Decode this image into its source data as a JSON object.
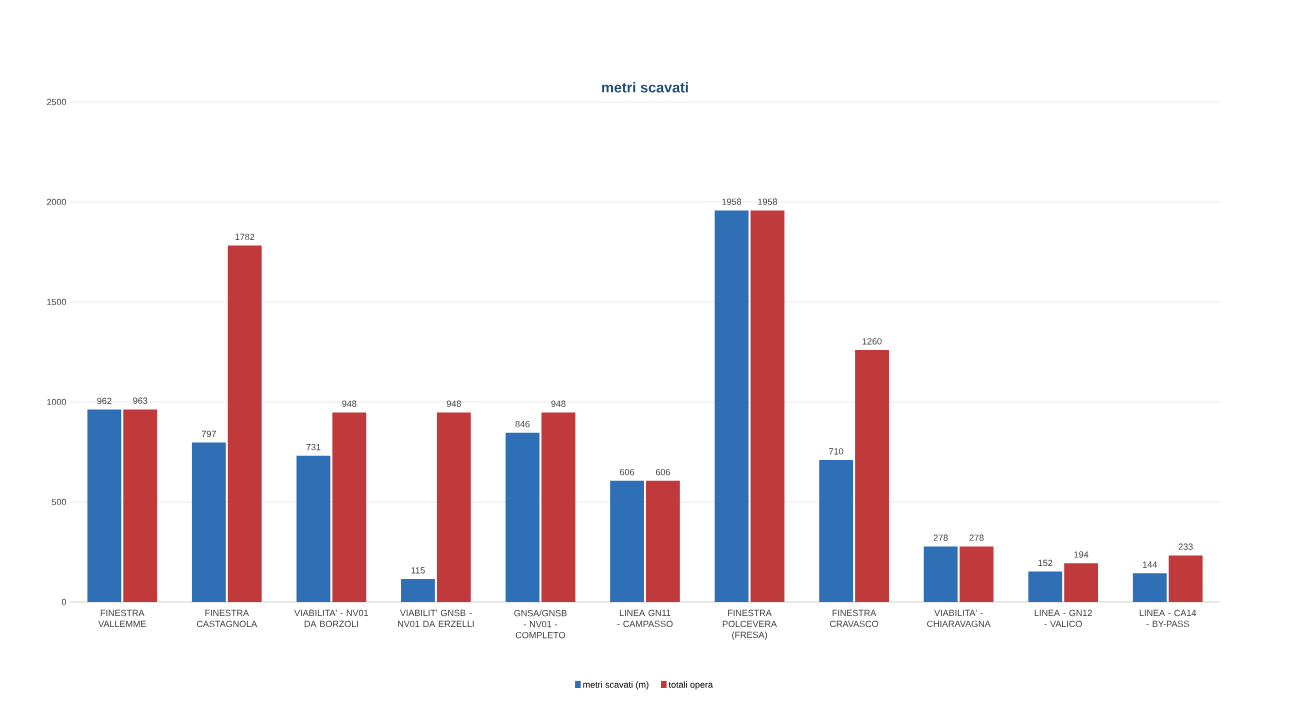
{
  "chart_data": {
    "type": "bar",
    "title": "metri scavati",
    "categories": [
      "FINESTRA VALLEMME",
      "FINESTRA CASTAGNOLA",
      "VIABILITA' - NV01 DA BORZOLI",
      "VIABILIT' GNSB - NV01 DA ERZELLI",
      "GNSA/GNSB - NV01 - COMPLETO",
      "LINEA GN11 - CAMPASSO",
      "FINESTRA POLCEVERA (FRESA)",
      "FINESTRA CRAVASCO",
      "VIABILITA' - CHIARAVAGNA",
      "LINEA - GN12 - VALICO",
      "LINEA - CA14 - BY-PASS"
    ],
    "series": [
      {
        "name": "metri scavati (m)",
        "color": "#2f6fb5",
        "values": [
          962,
          797,
          731,
          115,
          846,
          606,
          1958,
          710,
          278,
          152,
          144
        ]
      },
      {
        "name": "totali opera",
        "color": "#c0393b",
        "values": [
          963,
          1782,
          948,
          948,
          948,
          606,
          1958,
          1260,
          278,
          194,
          233
        ]
      }
    ],
    "ylim": [
      0,
      2500
    ],
    "yticks": [
      0,
      500,
      1000,
      1500,
      2000,
      2500
    ],
    "grid": "y",
    "legend": "bottom",
    "data_labels": true
  }
}
